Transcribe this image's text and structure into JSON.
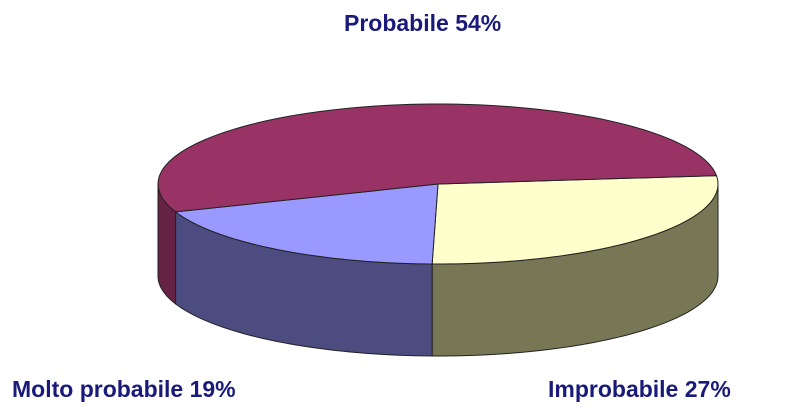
{
  "chart_data": {
    "type": "pie",
    "slices": [
      {
        "label": "Probabile 54%",
        "value": 54,
        "color": "#993366"
      },
      {
        "label": "Improbabile 27%",
        "value": 27,
        "color": "#FFFFCC"
      },
      {
        "label": "Molto probabile 19%",
        "value": 19,
        "color": "#9999FF"
      }
    ],
    "style": "3d"
  }
}
